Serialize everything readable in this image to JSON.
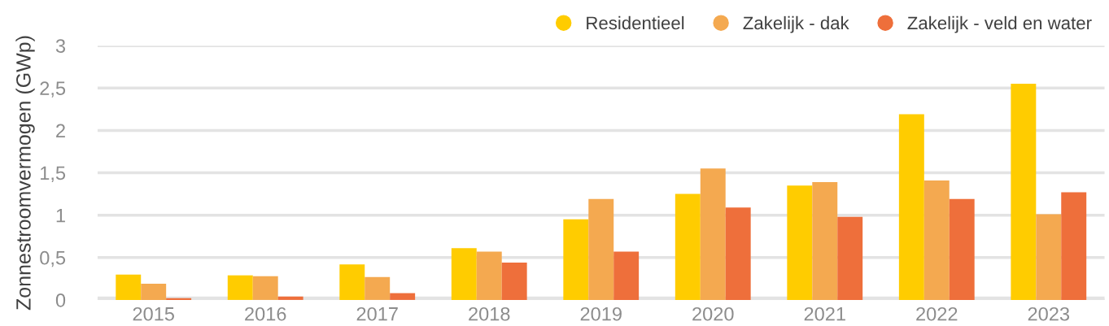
{
  "chart_data": {
    "type": "bar",
    "ylabel": "Zonnestroomvermogen (GWp)",
    "categories": [
      "2015",
      "2016",
      "2017",
      "2018",
      "2019",
      "2020",
      "2021",
      "2022",
      "2023"
    ],
    "series": [
      {
        "name": "Residentieel",
        "color": "#ffcc00",
        "values": [
          0.3,
          0.29,
          0.42,
          0.61,
          0.95,
          1.25,
          1.35,
          2.19,
          2.55
        ]
      },
      {
        "name": "Zakelijk - dak",
        "color": "#f4a950",
        "values": [
          0.19,
          0.28,
          0.27,
          0.57,
          1.19,
          1.55,
          1.39,
          1.41,
          1.01
        ]
      },
      {
        "name": "Zakelijk - veld en water",
        "color": "#ee6f3b",
        "values": [
          0.02,
          0.04,
          0.08,
          0.44,
          0.57,
          1.09,
          0.98,
          1.19,
          1.27
        ]
      }
    ],
    "ylim": [
      0,
      3
    ],
    "yticks": [
      0,
      {
        "value": 0.5,
        "label": "0,5"
      },
      1,
      {
        "value": 1.5,
        "label": "1,5"
      },
      2,
      {
        "value": 2.5,
        "label": "2,5"
      },
      3
    ],
    "grid": "y",
    "legend": "top right"
  }
}
